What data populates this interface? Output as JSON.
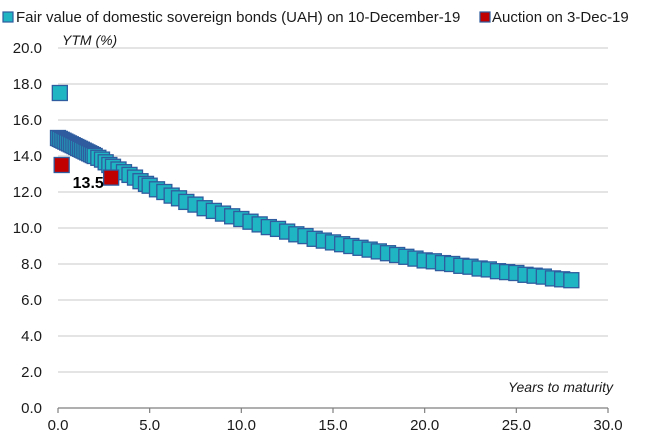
{
  "chart_data": {
    "type": "scatter",
    "title": "",
    "xlabel": "Years to maturity",
    "ylabel": "YTM (%)",
    "xlim": [
      0,
      30
    ],
    "ylim": [
      0,
      20
    ],
    "xticks": [
      0,
      5,
      10,
      15,
      20,
      25,
      30
    ],
    "yticks": [
      0,
      2,
      4,
      6,
      8,
      10,
      12,
      14,
      16,
      18,
      20
    ],
    "x_tick_labels": [
      "0.0",
      "5.0",
      "10.0",
      "15.0",
      "20.0",
      "25.0",
      "30.0"
    ],
    "y_tick_labels": [
      "0.0",
      "2.0",
      "4.0",
      "6.0",
      "8.0",
      "10.0",
      "12.0",
      "14.0",
      "16.0",
      "18.0",
      "20.0"
    ],
    "grid": "horizontal",
    "legend_position": "top",
    "series": [
      {
        "name": "Fair value of domestic sovereign bonds (UAH) on 10-December-19",
        "color_fill": "#1fb5c2",
        "color_edge": "#2e5c9e",
        "marker": "square",
        "x": [
          0.0,
          0.1,
          0.2,
          0.3,
          0.4,
          0.5,
          0.6,
          0.7,
          0.8,
          0.9,
          1.0,
          1.1,
          1.2,
          1.3,
          1.4,
          1.5,
          1.6,
          1.7,
          1.8,
          1.9,
          2.0,
          2.2,
          2.4,
          2.6,
          2.8,
          3.0,
          3.3,
          3.6,
          3.9,
          4.2,
          4.5,
          4.8,
          5.0,
          5.4,
          5.8,
          6.2,
          6.6,
          7.0,
          7.5,
          8.0,
          8.5,
          9.0,
          9.5,
          10.0,
          10.5,
          11.0,
          11.5,
          12.0,
          12.5,
          13.0,
          13.5,
          14.0,
          14.5,
          15.0,
          15.5,
          16.0,
          16.5,
          17.0,
          17.5,
          18.0,
          18.5,
          19.0,
          19.5,
          20.0,
          20.5,
          21.0,
          21.5,
          22.0,
          22.5,
          23.0,
          23.5,
          24.0,
          24.5,
          25.0,
          25.5,
          26.0,
          26.5,
          27.0,
          27.5,
          28.0,
          0.1
        ],
        "y": [
          15.0,
          14.95,
          14.9,
          14.85,
          14.8,
          14.75,
          14.7,
          14.65,
          14.6,
          14.55,
          14.5,
          14.45,
          14.4,
          14.35,
          14.3,
          14.25,
          14.2,
          14.15,
          14.1,
          14.05,
          14.0,
          13.9,
          13.8,
          13.65,
          13.5,
          13.4,
          13.25,
          13.1,
          12.95,
          12.8,
          12.6,
          12.45,
          12.35,
          12.15,
          12.0,
          11.8,
          11.65,
          11.45,
          11.3,
          11.1,
          10.95,
          10.8,
          10.65,
          10.5,
          10.35,
          10.2,
          10.05,
          9.95,
          9.8,
          9.65,
          9.55,
          9.4,
          9.3,
          9.2,
          9.1,
          9.0,
          8.9,
          8.8,
          8.7,
          8.6,
          8.5,
          8.4,
          8.3,
          8.2,
          8.15,
          8.05,
          8.0,
          7.9,
          7.85,
          7.75,
          7.7,
          7.6,
          7.55,
          7.5,
          7.4,
          7.35,
          7.3,
          7.2,
          7.15,
          7.1,
          17.5
        ]
      },
      {
        "name": "Auction on 3-Dec-19",
        "color_fill": "#c00000",
        "color_edge": "#2e5c9e",
        "marker": "square",
        "x": [
          0.2,
          2.9
        ],
        "y": [
          13.5,
          12.8
        ],
        "labels": [
          "13.5",
          ""
        ]
      }
    ]
  }
}
